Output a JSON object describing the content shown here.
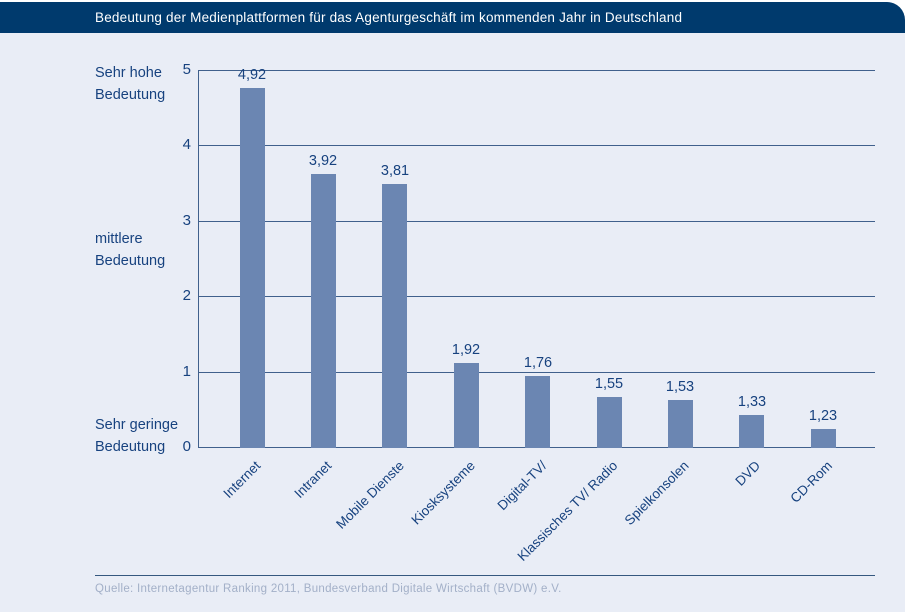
{
  "header": {
    "title": "Bedeutung der Medienplattformen für das Agenturgeschäft im kommenden Jahr in Deutschland"
  },
  "chart_data": {
    "type": "bar",
    "title": "Bedeutung der Medienplattformen für das Agenturgeschäft im kommenden Jahr in Deutschland",
    "categories": [
      "Internet",
      "Intranet",
      "Mobile Dienste",
      "Kiosksysteme",
      "Digital-TV/",
      "Klassisches TV/ Radio",
      "Spielkonsolen",
      "DVD",
      "CD-Rom"
    ],
    "values": [
      4.92,
      3.92,
      3.81,
      1.92,
      1.76,
      1.55,
      1.53,
      1.33,
      1.23
    ],
    "value_labels": [
      "4,92",
      "3,92",
      "3,81",
      "1,92",
      "1,76",
      "1,55",
      "1,53",
      "1,33",
      "1,23"
    ],
    "ylim": [
      0,
      5
    ],
    "yticks": [
      5,
      4,
      3,
      2,
      1,
      0
    ],
    "grid": true,
    "legend_position": "none",
    "y_axis_annotations": [
      {
        "text": "Sehr hohe Bedeutung",
        "lines": [
          "Sehr hohe",
          "Bedeutung"
        ],
        "near_value": 5
      },
      {
        "text": "mittlere Bedeutung",
        "lines": [
          "mittlere",
          "Bedeutung"
        ],
        "near_value": 2.7
      },
      {
        "text": "Sehr geringe Bedeutung",
        "lines": [
          "Sehr geringe",
          "Bedeutung"
        ],
        "near_value": 0.2
      }
    ],
    "rendered_bar_units": [
      4.77,
      3.63,
      3.5,
      1.13,
      0.95,
      0.68,
      0.64,
      0.44,
      0.25
    ],
    "x_tick_rotation_deg": -45
  },
  "footer": {
    "source": "Quelle: Internetagentur Ranking 2011, Bundesverband Digitale Wirtschaft (BVDW) e.V."
  },
  "colors": {
    "header_bg": "#003a6d",
    "card_bg": "#e9edf6",
    "bar": "#6b86b2",
    "grid_line": "#40608c",
    "text_dark": "#17427f",
    "value_label": "#17427f",
    "source_text": "#a3b0c8",
    "divider": "#35587f",
    "title_text": "#ffffff"
  }
}
